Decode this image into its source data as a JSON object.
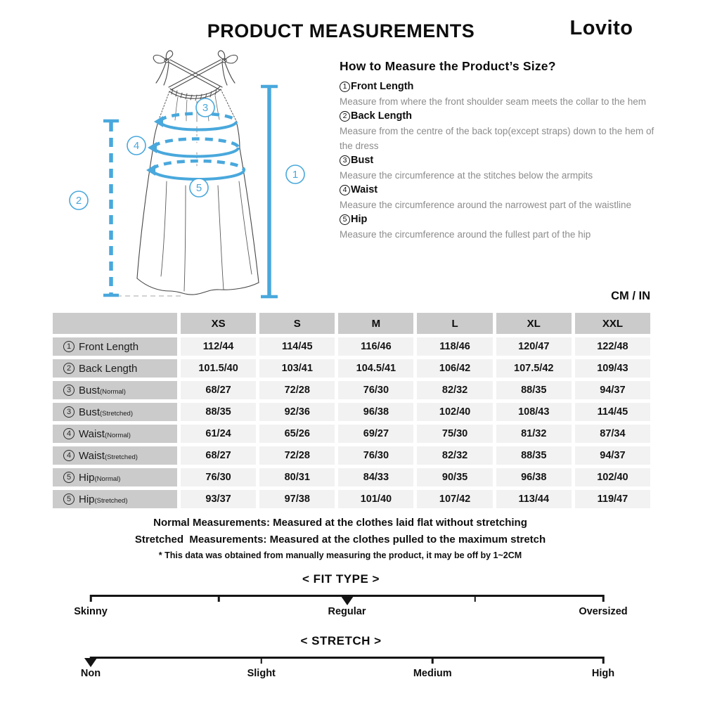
{
  "title": "PRODUCT MEASUREMENTS",
  "brand": "Lovito",
  "how_to": {
    "title": "How to Measure the Product’s Size?",
    "items": [
      {
        "num": "1",
        "label": "Front Length",
        "desc": "Measure from where the front shoulder seam meets the collar to the hem"
      },
      {
        "num": "2",
        "label": "Back Length",
        "desc": "Measure from the centre of the back top(except straps) down to the hem of the dress"
      },
      {
        "num": "3",
        "label": "Bust",
        "desc": "Measure the circumference at the stitches below the armpits"
      },
      {
        "num": "4",
        "label": "Waist",
        "desc": "Measure the circumference around the narrowest part of the waistline"
      },
      {
        "num": "5",
        "label": "Hip",
        "desc": "Measure the circumference around the fullest part of the hip"
      }
    ]
  },
  "unit_label": "CM / IN",
  "diagram": {
    "nums": [
      "1",
      "2",
      "3",
      "4",
      "5"
    ],
    "accent": "#49a8dc"
  },
  "table": {
    "columns": [
      "XS",
      "S",
      "M",
      "L",
      "XL",
      "XXL"
    ],
    "rows": [
      {
        "num": "1",
        "label": "Front Length",
        "sub": "",
        "values": [
          "112/44",
          "114/45",
          "116/46",
          "118/46",
          "120/47",
          "122/48"
        ]
      },
      {
        "num": "2",
        "label": "Back Length",
        "sub": "",
        "values": [
          "101.5/40",
          "103/41",
          "104.5/41",
          "106/42",
          "107.5/42",
          "109/43"
        ]
      },
      {
        "num": "3",
        "label": "Bust",
        "sub": "(Normal)",
        "values": [
          "68/27",
          "72/28",
          "76/30",
          "82/32",
          "88/35",
          "94/37"
        ]
      },
      {
        "num": "3",
        "label": "Bust",
        "sub": "(Stretched)",
        "values": [
          "88/35",
          "92/36",
          "96/38",
          "102/40",
          "108/43",
          "114/45"
        ]
      },
      {
        "num": "4",
        "label": "Waist",
        "sub": "(Normal)",
        "values": [
          "61/24",
          "65/26",
          "69/27",
          "75/30",
          "81/32",
          "87/34"
        ]
      },
      {
        "num": "4",
        "label": "Waist",
        "sub": "(Stretched)",
        "values": [
          "68/27",
          "72/28",
          "76/30",
          "82/32",
          "88/35",
          "94/37"
        ]
      },
      {
        "num": "5",
        "label": "Hip",
        "sub": "(Normal)",
        "values": [
          "76/30",
          "80/31",
          "84/33",
          "90/35",
          "96/38",
          "102/40"
        ]
      },
      {
        "num": "5",
        "label": "Hip",
        "sub": "(Stretched)",
        "values": [
          "93/37",
          "97/38",
          "101/40",
          "107/42",
          "113/44",
          "119/47"
        ]
      }
    ]
  },
  "notes": {
    "line1": "Normal Measurements: Measured at the clothes laid flat without stretching",
    "line2": "Stretched  Measurements: Measured at the clothes pulled to the maximum stretch",
    "line3": "* This data was obtained from manually measuring the product, it may be off by 1~2CM"
  },
  "scales": [
    {
      "title": "< FIT TYPE >",
      "ticks": [
        0,
        25,
        50,
        75,
        100
      ],
      "marker": 50,
      "labels": [
        {
          "text": "Skinny",
          "pos": 0
        },
        {
          "text": "Regular",
          "pos": 50
        },
        {
          "text": "Oversized",
          "pos": 100
        }
      ]
    },
    {
      "title": "< STRETCH >",
      "ticks": [
        0,
        33.3,
        66.7,
        100
      ],
      "marker": 0,
      "labels": [
        {
          "text": "Non",
          "pos": 0
        },
        {
          "text": "Slight",
          "pos": 33.3
        },
        {
          "text": "Medium",
          "pos": 66.7
        },
        {
          "text": "High",
          "pos": 100
        }
      ]
    }
  ],
  "colors": {
    "accent_blue": "#49a8dc",
    "table_header_gray": "#cbcbcb",
    "cell_gray": "#f2f2f2",
    "text_dark": "#111111",
    "text_gray": "#8c8c8c"
  }
}
